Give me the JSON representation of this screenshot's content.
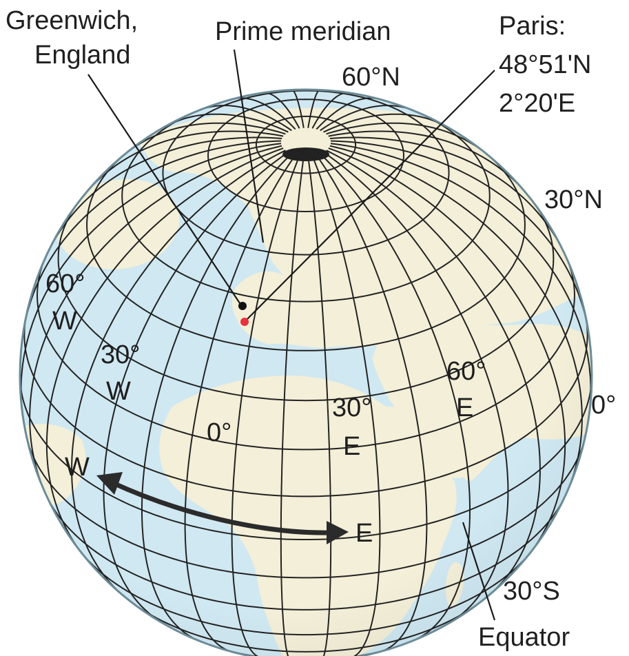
{
  "labels": {
    "greenwich_line1": "Greenwich,",
    "greenwich_line2": "England",
    "prime_meridian": "Prime meridian",
    "paris_title": "Paris:",
    "paris_lat": "48°51'N",
    "paris_lon": "2°20'E",
    "lat_60n": "60°N",
    "lat_30n": "30°N",
    "lat_0": "0°",
    "lat_30s": "30°S",
    "equator": "Equator",
    "lon_60w_deg": "60°",
    "lon_60w_dir": "W",
    "lon_30w_deg": "30°",
    "lon_30w_dir": "W",
    "lon_0": "0°",
    "lon_30e_deg": "30°",
    "lon_30e_dir": "E",
    "lon_60e_deg": "60°",
    "lon_60e_dir": "E",
    "west": "W",
    "east": "E"
  },
  "colors": {
    "ocean": "#cfe8f2",
    "land": "#f3efd8",
    "grid": "#222222",
    "paris_dot": "#e8323c",
    "greenwich_dot": "#111111"
  }
}
